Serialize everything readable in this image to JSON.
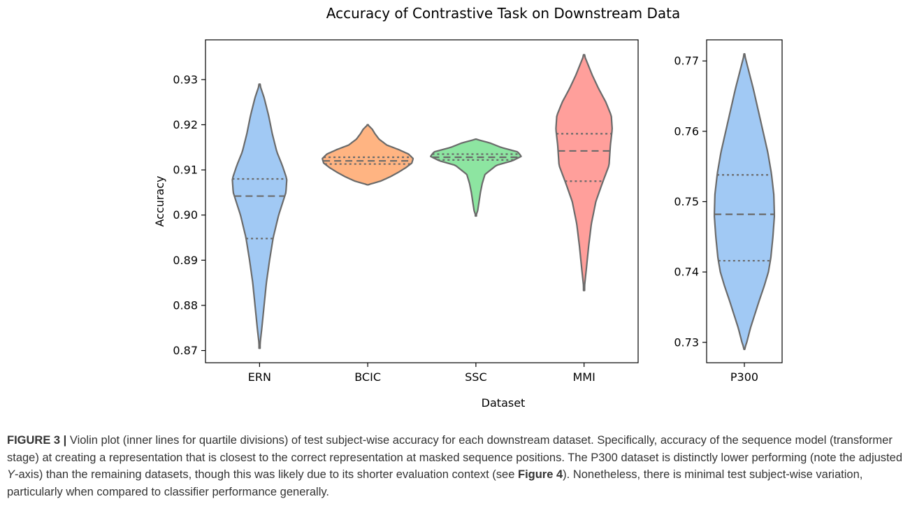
{
  "chart_data": [
    {
      "type": "violin",
      "title": "Accuracy of Contrastive Task on Downstream Data",
      "xlabel": "Dataset",
      "ylabel": "Accuracy",
      "ylim": [
        0.8673,
        0.9388
      ],
      "yticks": [
        0.87,
        0.88,
        0.89,
        0.9,
        0.91,
        0.92,
        0.93
      ],
      "ytick_labels": [
        "0.87",
        "0.88",
        "0.89",
        "0.90",
        "0.91",
        "0.92",
        "0.93"
      ],
      "grid": false,
      "categories": [
        "ERN",
        "BCIC",
        "SSC",
        "MMI"
      ],
      "violins": [
        {
          "name": "ERN",
          "color": "#a1c9f4",
          "min": 0.8705,
          "max": 0.929,
          "q1": 0.8948,
          "median": 0.9042,
          "q3": 0.908,
          "profile": [
            [
              0.8705,
              0.0
            ],
            [
              0.875,
              0.05
            ],
            [
              0.88,
              0.1
            ],
            [
              0.885,
              0.15
            ],
            [
              0.89,
              0.22
            ],
            [
              0.895,
              0.3
            ],
            [
              0.9,
              0.42
            ],
            [
              0.905,
              0.58
            ],
            [
              0.908,
              0.6
            ],
            [
              0.911,
              0.5
            ],
            [
              0.914,
              0.38
            ],
            [
              0.918,
              0.28
            ],
            [
              0.922,
              0.2
            ],
            [
              0.926,
              0.1
            ],
            [
              0.929,
              0.0
            ]
          ]
        },
        {
          "name": "BCIC",
          "color": "#ffb482",
          "min": 0.9067,
          "max": 0.92,
          "q1": 0.9113,
          "median": 0.912,
          "q3": 0.9128,
          "profile": [
            [
              0.9067,
              0.0
            ],
            [
              0.9075,
              0.28
            ],
            [
              0.9085,
              0.5
            ],
            [
              0.9095,
              0.68
            ],
            [
              0.9105,
              0.84
            ],
            [
              0.9115,
              0.97
            ],
            [
              0.9125,
              1.0
            ],
            [
              0.9135,
              0.9
            ],
            [
              0.9145,
              0.68
            ],
            [
              0.9155,
              0.42
            ],
            [
              0.9168,
              0.25
            ],
            [
              0.918,
              0.16
            ],
            [
              0.919,
              0.1
            ],
            [
              0.92,
              0.0
            ]
          ]
        },
        {
          "name": "SSC",
          "color": "#8de5a1",
          "min": 0.8998,
          "max": 0.9168,
          "q1": 0.9122,
          "median": 0.9128,
          "q3": 0.9135,
          "profile": [
            [
              0.8998,
              0.0
            ],
            [
              0.901,
              0.04
            ],
            [
              0.903,
              0.07
            ],
            [
              0.905,
              0.1
            ],
            [
              0.907,
              0.14
            ],
            [
              0.909,
              0.2
            ],
            [
              0.911,
              0.45
            ],
            [
              0.912,
              0.8
            ],
            [
              0.913,
              1.0
            ],
            [
              0.914,
              0.92
            ],
            [
              0.915,
              0.55
            ],
            [
              0.916,
              0.3
            ],
            [
              0.9168,
              0.0
            ]
          ]
        },
        {
          "name": "MMI",
          "color": "#ff9f9b",
          "min": 0.8833,
          "max": 0.9355,
          "q1": 0.9075,
          "median": 0.9142,
          "q3": 0.918,
          "profile": [
            [
              0.8833,
              0.0
            ],
            [
              0.888,
              0.05
            ],
            [
              0.893,
              0.1
            ],
            [
              0.898,
              0.16
            ],
            [
              0.903,
              0.26
            ],
            [
              0.907,
              0.4
            ],
            [
              0.911,
              0.55
            ],
            [
              0.9155,
              0.58
            ],
            [
              0.919,
              0.62
            ],
            [
              0.922,
              0.6
            ],
            [
              0.925,
              0.48
            ],
            [
              0.928,
              0.32
            ],
            [
              0.931,
              0.18
            ],
            [
              0.934,
              0.06
            ],
            [
              0.9355,
              0.0
            ]
          ]
        }
      ]
    },
    {
      "type": "violin",
      "title": "",
      "xlabel": "",
      "ylabel": "",
      "ylim": [
        0.7271,
        0.773
      ],
      "yticks": [
        0.73,
        0.74,
        0.75,
        0.76,
        0.77
      ],
      "ytick_labels": [
        "0.73",
        "0.74",
        "0.75",
        "0.76",
        "0.77"
      ],
      "grid": false,
      "categories": [
        "P300"
      ],
      "violins": [
        {
          "name": "P300",
          "color": "#a1c9f4",
          "min": 0.729,
          "max": 0.771,
          "q1": 0.7416,
          "median": 0.7482,
          "q3": 0.7538,
          "profile": [
            [
              0.729,
              0.0
            ],
            [
              0.73,
              0.08
            ],
            [
              0.732,
              0.2
            ],
            [
              0.734,
              0.35
            ],
            [
              0.736,
              0.5
            ],
            [
              0.738,
              0.66
            ],
            [
              0.74,
              0.8
            ],
            [
              0.742,
              0.88
            ],
            [
              0.745,
              0.95
            ],
            [
              0.748,
              1.0
            ],
            [
              0.751,
              0.98
            ],
            [
              0.754,
              0.9
            ],
            [
              0.757,
              0.78
            ],
            [
              0.76,
              0.62
            ],
            [
              0.763,
              0.46
            ],
            [
              0.766,
              0.3
            ],
            [
              0.768,
              0.18
            ],
            [
              0.77,
              0.06
            ],
            [
              0.771,
              0.0
            ]
          ]
        }
      ]
    }
  ],
  "caption": {
    "label": "FIGURE 3 |",
    "text_1": " Violin plot (inner lines for quartile divisions) of test subject-wise accuracy for each downstream dataset. Specifically, accuracy of the sequence model (transformer stage) at creating a representation that is closest to the correct representation at masked sequence positions. The P300 dataset is distinctly lower performing (note the adjusted ",
    "y_italic": "Y",
    "text_2": "-axis) than the remaining datasets, though this was likely due to its shorter evaluation context (see ",
    "ref": "Figure 4",
    "text_3": "). Nonetheless, there is minimal test subject-wise variation, particularly when compared to classifier performance generally."
  }
}
